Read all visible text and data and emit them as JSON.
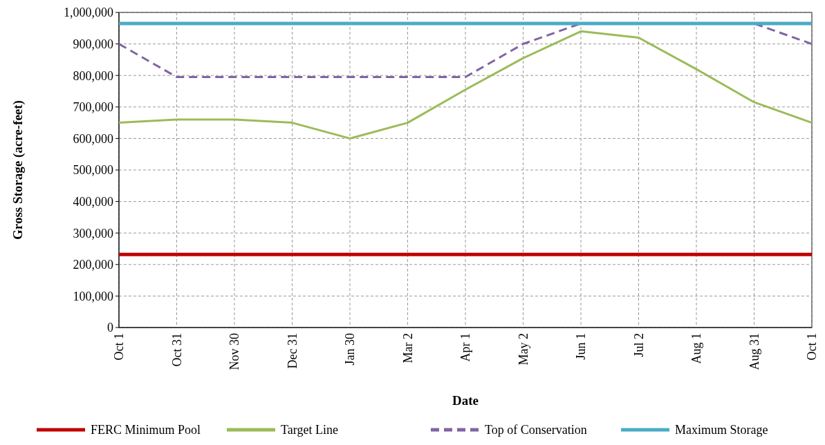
{
  "chart_data": {
    "type": "line",
    "xlabel": "Date",
    "ylabel": "Gross  Storage (acre-feet)",
    "categories": [
      "Oct 1",
      "Oct 31",
      "Nov 30",
      "Dec 31",
      "Jan 30",
      "Mar 2",
      "Apr 1",
      "May 2",
      "Jun 1",
      "Jul 2",
      "Aug 1",
      "Aug 31",
      "Oct 1"
    ],
    "series": [
      {
        "name": "FERC Minimum Pool",
        "color": "#c00000",
        "values": [
          232000,
          232000,
          232000,
          232000,
          232000,
          232000,
          232000,
          232000,
          232000,
          232000,
          232000,
          232000,
          232000
        ]
      },
      {
        "name": "Target Line",
        "color": "#9bbb59",
        "values": [
          650000,
          660000,
          660000,
          650000,
          600000,
          650000,
          755000,
          855000,
          940000,
          920000,
          820000,
          715000,
          650000
        ]
      },
      {
        "name": "Top of Conservation",
        "color": "#8064a2",
        "line_style": "dashed",
        "values": [
          900000,
          795000,
          795000,
          795000,
          795000,
          795000,
          795000,
          900000,
          965000,
          965000,
          965000,
          965000,
          900000
        ]
      },
      {
        "name": "Maximum Storage",
        "color": "#4bacc6",
        "values": [
          965000,
          965000,
          965000,
          965000,
          965000,
          965000,
          965000,
          965000,
          965000,
          965000,
          965000,
          965000,
          965000
        ]
      }
    ],
    "ylim": [
      0,
      1000000
    ],
    "yticks": [
      0,
      {
        "value": 100000,
        "label": "100,000"
      },
      {
        "value": 200000,
        "label": "200,000"
      },
      {
        "value": 300000,
        "label": "300,000"
      },
      {
        "value": 400000,
        "label": "400,000"
      },
      {
        "value": 500000,
        "label": "500,000"
      },
      {
        "value": 600000,
        "label": "600,000"
      },
      {
        "value": 700000,
        "label": "700,000"
      },
      {
        "value": 800000,
        "label": "800,000"
      },
      {
        "value": 900000,
        "label": "900,000"
      },
      {
        "value": 1000000,
        "label": "1,000,000"
      }
    ],
    "grid": true,
    "legend": "bottom",
    "line_style": "solid"
  }
}
